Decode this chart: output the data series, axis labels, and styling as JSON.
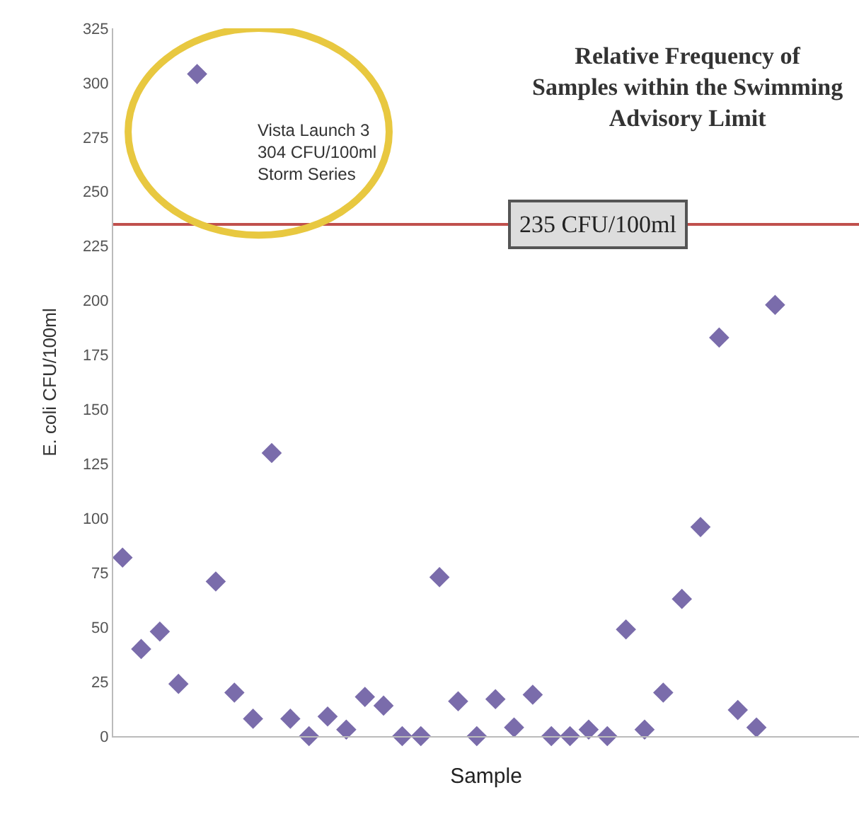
{
  "chart_data": {
    "type": "scatter",
    "title": "Relative Frequency of\nSamples within the Swimming\nAdvisory Limit",
    "xlabel": "Sample",
    "ylabel": "E. coli CFU/100ml",
    "categories": [
      null,
      null,
      null,
      null,
      null,
      null,
      null,
      null,
      null,
      null,
      null,
      null,
      null,
      null,
      null,
      null,
      null,
      null,
      null,
      null,
      null,
      null,
      null,
      null,
      null,
      null,
      null,
      null,
      null,
      null,
      null,
      null,
      null,
      null,
      null,
      null,
      null,
      null,
      null,
      null
    ],
    "series": [
      {
        "color": "#7a6cab",
        "values": [
          82,
          40,
          48,
          24,
          304,
          71,
          20,
          8,
          130,
          8,
          0,
          9,
          3,
          18,
          14,
          0,
          0,
          73,
          16,
          0,
          17,
          4,
          19,
          0,
          0,
          3,
          0,
          49,
          3,
          20,
          63,
          96,
          183,
          12,
          4,
          198,
          null,
          null,
          null,
          null
        ]
      }
    ],
    "marker": "diamond",
    "ylim": [
      0,
      325
    ],
    "yticks": [
      0,
      25,
      50,
      75,
      100,
      125,
      150,
      175,
      200,
      225,
      250,
      275,
      300,
      325
    ],
    "legend": false,
    "ref_lines": [
      {
        "axis": "y",
        "value": 235,
        "label": "235 CFU/100ml",
        "color": "#c0504d"
      }
    ],
    "annotations": [
      "Vista Launch 3\n304 CFU/100ml\nStorm Series"
    ]
  }
}
